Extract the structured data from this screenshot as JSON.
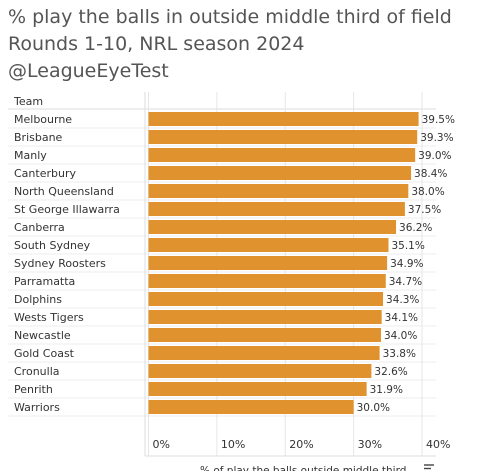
{
  "title_lines": [
    "% play the balls in outside middle third of field",
    "Rounds 1-10, NRL season 2024",
    "@LeagueEyeTest"
  ],
  "chart_data": {
    "type": "bar",
    "orientation": "horizontal",
    "row_header": "Team",
    "categories": [
      "Melbourne",
      "Brisbane",
      "Manly",
      "Canterbury",
      "North Queensland",
      "St George Illawarra",
      "Canberra",
      "South Sydney",
      "Sydney Roosters",
      "Parramatta",
      "Dolphins",
      "Wests Tigers",
      "Newcastle",
      "Gold Coast",
      "Cronulla",
      "Penrith",
      "Warriors"
    ],
    "values": [
      39.5,
      39.3,
      39.0,
      38.4,
      38.0,
      37.5,
      36.2,
      35.1,
      34.9,
      34.7,
      34.3,
      34.1,
      34.0,
      33.8,
      32.6,
      31.9,
      30.0
    ],
    "value_labels": [
      "39.5%",
      "39.3%",
      "39.0%",
      "38.4%",
      "38.0%",
      "37.5%",
      "36.2%",
      "35.1%",
      "34.9%",
      "34.7%",
      "34.3%",
      "34.1%",
      "34.0%",
      "33.8%",
      "32.6%",
      "31.9%",
      "30.0%"
    ],
    "xlabel": "% of play the balls outside middle third",
    "xlim": [
      0,
      40
    ],
    "x_ticks": [
      0,
      10,
      20,
      30,
      40
    ],
    "x_tick_labels": [
      "0%",
      "10%",
      "20%",
      "30%",
      "40%"
    ],
    "sorted": "descending",
    "bar_color": "#E0922F",
    "grid": true
  },
  "colors": {
    "title": "#555555",
    "text": "#333333",
    "grid": "#e6e6e6",
    "row_divider": "#dddddd",
    "sort_icon": "#444444"
  },
  "icons": {
    "sort": "sort-descending-icon"
  }
}
